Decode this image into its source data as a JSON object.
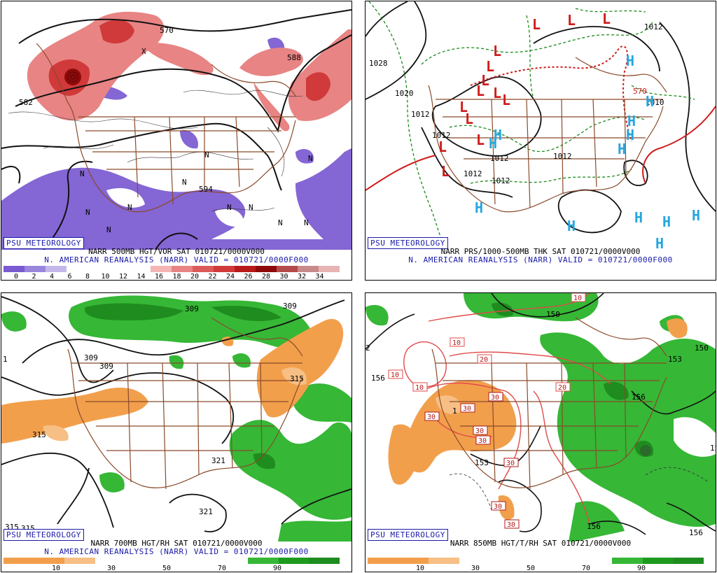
{
  "panels": [
    {
      "id": "p1",
      "line1": "NARR 500MB HGT/VOR SAT 010721/0000V000",
      "line2": "N. AMERICAN REANALYSIS (NARR) VALID = 010721/0000F000",
      "logo": "PSU METEOROLOGY",
      "colorbar": {
        "colors": [
          "#7a5ad0",
          "#9a86dc",
          "#c4b8ea",
          "#ffffff",
          "#ffffff",
          "#ffffff",
          "#ffffff",
          "#f4b4b4",
          "#e88484",
          "#dc5a5a",
          "#d03a3a",
          "#b81a1a",
          "#8e0a0a",
          "#b44a4a",
          "#c98a8a",
          "#e7b3b3"
        ],
        "labels": [
          "0",
          "2",
          "4",
          "6",
          "8",
          "10",
          "12",
          "14",
          "16",
          "18",
          "20",
          "22",
          "24",
          "26",
          "28",
          "30",
          "32",
          "34"
        ]
      },
      "labels": [
        "570",
        "582",
        "588",
        "594",
        "N",
        "N",
        "N",
        "N",
        "N",
        "N",
        "N",
        "N",
        "N",
        "N",
        "N",
        "X"
      ]
    },
    {
      "id": "p2",
      "line1": "NARR PRS/1000-500MB THK SAT 010721/0000V000",
      "line2": "N. AMERICAN REANALYSIS (NARR) VALID = 010721/0000F000",
      "logo": "PSU METEOROLOGY",
      "labels": [
        "1028",
        "1020",
        "1012",
        "1012",
        "1012",
        "1012",
        "1012",
        "1012",
        "1012",
        "1010",
        "570"
      ],
      "lows": [
        "L",
        "L",
        "L",
        "L",
        "L",
        "L",
        "L",
        "L",
        "L",
        "L",
        "L",
        "L",
        "L",
        "L"
      ],
      "highs": [
        "H",
        "H",
        "H",
        "H",
        "H",
        "H",
        "H",
        "H",
        "H",
        "H",
        "H",
        "H",
        "H"
      ]
    },
    {
      "id": "p3",
      "line1": "NARR 700MB HGT/RH SAT 010721/0000V000",
      "line2": "N. AMERICAN REANALYSIS (NARR) VALID = 010721/0000F000",
      "logo": "PSU METEOROLOGY",
      "colorbar": {
        "colors": [
          "#f29f4c",
          "#f29f4c",
          "#f7bf85",
          "#ffffff",
          "#ffffff",
          "#ffffff",
          "#ffffff",
          "#ffffff",
          "#36b736",
          "#1e9a1e",
          "#1e8c1e"
        ],
        "labels": [
          "10",
          "30",
          "50",
          "70",
          "90"
        ]
      },
      "labels": [
        "309",
        "309",
        "309",
        "309",
        "315",
        "315",
        "315",
        "321",
        "321",
        "315",
        "1"
      ]
    },
    {
      "id": "p4",
      "line1": "NARR 850MB HGT/T/RH SAT 010721/0000V000",
      "line2": "",
      "logo": "PSU METEOROLOGY",
      "colorbar": {
        "colors": [
          "#f29f4c",
          "#f29f4c",
          "#f7bf85",
          "#ffffff",
          "#ffffff",
          "#ffffff",
          "#ffffff",
          "#ffffff",
          "#36b736",
          "#1e9a1e",
          "#1e8c1e"
        ],
        "labels": [
          "10",
          "30",
          "50",
          "70",
          "90"
        ]
      },
      "labels": [
        "156",
        "150",
        "156",
        "156",
        "150",
        "153",
        "156",
        "1",
        "2",
        "15",
        "153"
      ],
      "boxes": [
        "10",
        "10",
        "10",
        "10",
        "20",
        "20",
        "30",
        "30",
        "30",
        "30",
        "30",
        "30",
        "30",
        "30"
      ]
    }
  ]
}
